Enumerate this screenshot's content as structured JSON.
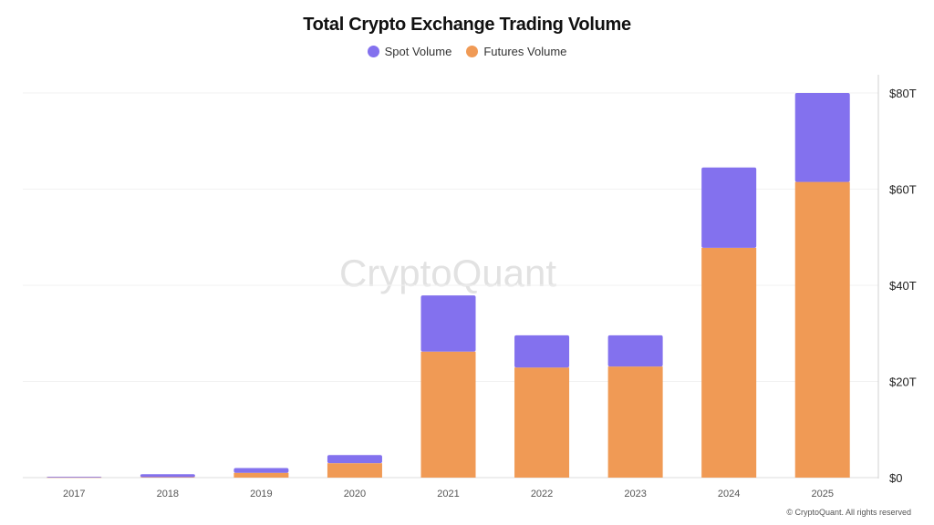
{
  "chart_data": {
    "type": "bar",
    "stacked": true,
    "title": "Total Crypto Exchange Trading Volume",
    "categories": [
      "2017",
      "2018",
      "2019",
      "2020",
      "2021",
      "2022",
      "2023",
      "2024",
      "2025"
    ],
    "series": [
      {
        "name": "Futures Volume",
        "color": "#F09A55",
        "values": [
          0.05,
          0.1,
          1.0,
          3.0,
          26.2,
          22.9,
          23.1,
          47.8,
          61.5
        ]
      },
      {
        "name": "Spot Volume",
        "color": "#8371EE",
        "values": [
          0.15,
          0.6,
          1.0,
          1.7,
          11.7,
          6.7,
          6.5,
          16.7,
          18.5
        ]
      }
    ],
    "legend_order": [
      "Spot Volume",
      "Futures Volume"
    ],
    "legend_position": "top-center",
    "ylim": [
      0,
      80
    ],
    "yticks": [
      0,
      20,
      40,
      60,
      80
    ],
    "ytick_labels": [
      "$0",
      "$20T",
      "$40T",
      "$60T",
      "$80T"
    ],
    "y_axis_side": "right",
    "grid": true,
    "xlabel": "",
    "ylabel": ""
  },
  "watermark": "CryptoQuant",
  "footer": "© CryptoQuant. All rights reserved"
}
